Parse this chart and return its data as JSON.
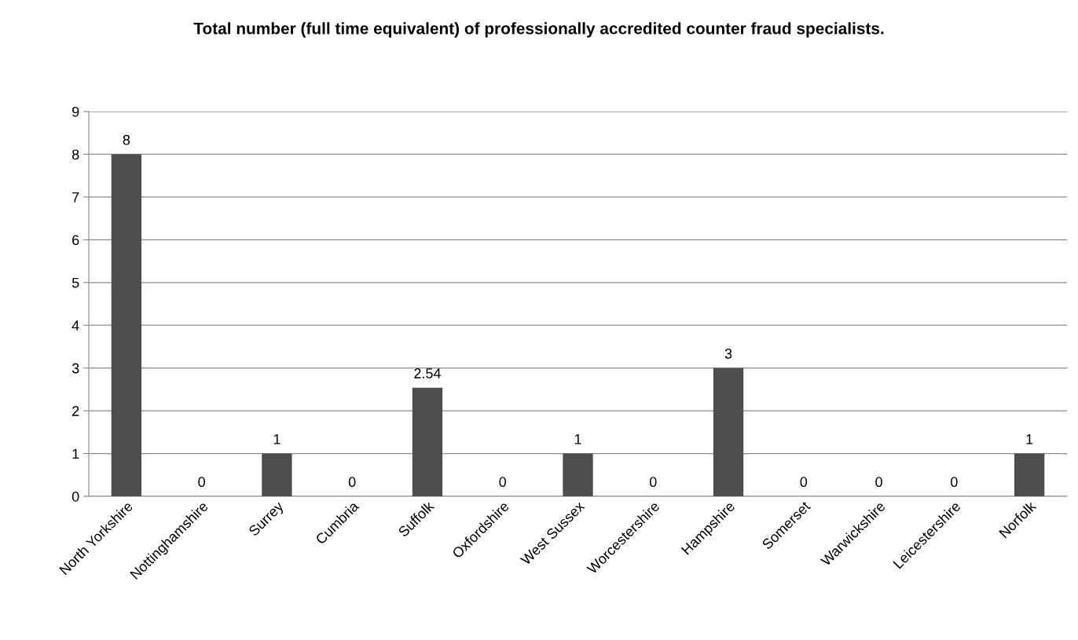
{
  "chart_data": {
    "type": "bar",
    "title": "Total number (full time equivalent) of professionally accredited counter fraud specialists.",
    "categories": [
      "North Yorkshire",
      "Nottinghamshire",
      "Surrey",
      "Cumbria",
      "Suffolk",
      "Oxfordshire",
      "West Sussex",
      "Worcestershire",
      "Hampshire",
      "Somerset",
      "Warwickshire",
      "Leicestershire",
      "Norfolk"
    ],
    "values": [
      8,
      0,
      1,
      0,
      2.54,
      0,
      1,
      0,
      3,
      0,
      0,
      0,
      1
    ],
    "color": "#4d4d4d",
    "ylim": [
      0,
      9
    ],
    "yticks": [
      0,
      1,
      2,
      3,
      4,
      5,
      6,
      7,
      8,
      9
    ],
    "grid": "y",
    "data_labels": true,
    "legend": false
  }
}
